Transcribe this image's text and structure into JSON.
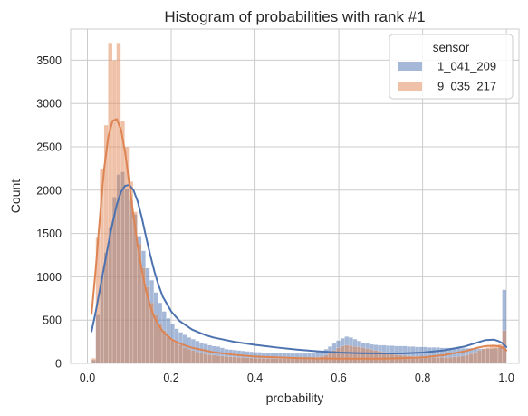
{
  "chart_data": {
    "type": "histogram",
    "title": "Histogram of probabilities with rank #1",
    "xlabel": "probability",
    "ylabel": "Count",
    "xlim": [
      -0.04,
      1.03
    ],
    "ylim": [
      0,
      3860
    ],
    "x_ticks": [
      0.0,
      0.2,
      0.4,
      0.6,
      0.8,
      1.0
    ],
    "x_tick_labels": [
      "0.0",
      "0.2",
      "0.4",
      "0.6",
      "0.8",
      "1.0"
    ],
    "y_ticks": [
      0,
      500,
      1000,
      1500,
      2000,
      2500,
      3000,
      3500
    ],
    "y_tick_labels": [
      "0",
      "500",
      "1000",
      "1500",
      "2000",
      "2500",
      "3000",
      "3500"
    ],
    "grid": true,
    "bin_edges_range": [
      0.01,
      1.0
    ],
    "legend": {
      "title": "sensor",
      "placement": "top-right"
    },
    "series": [
      {
        "name": "1_041_209",
        "color": "#4c72b0",
        "kde_x": [
          0.01,
          0.02,
          0.03,
          0.04,
          0.05,
          0.06,
          0.07,
          0.08,
          0.09,
          0.1,
          0.11,
          0.12,
          0.13,
          0.14,
          0.15,
          0.16,
          0.17,
          0.18,
          0.2,
          0.22,
          0.25,
          0.28,
          0.3,
          0.35,
          0.4,
          0.45,
          0.5,
          0.55,
          0.6,
          0.65,
          0.7,
          0.75,
          0.8,
          0.85,
          0.9,
          0.93,
          0.95,
          0.97,
          0.98,
          0.99,
          1.0
        ],
        "kde_y": [
          370,
          600,
          860,
          1120,
          1380,
          1620,
          1830,
          1980,
          2050,
          2060,
          2000,
          1870,
          1680,
          1460,
          1250,
          1060,
          900,
          770,
          600,
          490,
          390,
          330,
          300,
          250,
          215,
          185,
          160,
          140,
          125,
          118,
          115,
          115,
          125,
          150,
          195,
          240,
          270,
          275,
          260,
          235,
          190
        ],
        "values": [
          40,
          560,
          1010,
          1280,
          1560,
          1920,
          2180,
          2210,
          2010,
          1880,
          1720,
          1470,
          1300,
          1100,
          960,
          820,
          700,
          600,
          520,
          460,
          400,
          360,
          330,
          300,
          280,
          260,
          240,
          225,
          210,
          200,
          195,
          180,
          165,
          160,
          155,
          150,
          145,
          140,
          135,
          130,
          130,
          125,
          125,
          120,
          120,
          120,
          120,
          115,
          115,
          115,
          115,
          115,
          120,
          125,
          135,
          145,
          165,
          195,
          230,
          265,
          290,
          310,
          300,
          280,
          260,
          240,
          230,
          220,
          215,
          210,
          210,
          205,
          205,
          200,
          200,
          200,
          195,
          195,
          190,
          190,
          190,
          185,
          185,
          185,
          180,
          180,
          180,
          175,
          175,
          175,
          175,
          175,
          170,
          170,
          170,
          170,
          170,
          175,
          180,
          850
        ]
      },
      {
        "name": "9_035_217",
        "color": "#dd8452",
        "kde_x": [
          0.01,
          0.02,
          0.03,
          0.04,
          0.05,
          0.06,
          0.07,
          0.08,
          0.09,
          0.1,
          0.11,
          0.12,
          0.13,
          0.14,
          0.15,
          0.16,
          0.17,
          0.18,
          0.2,
          0.22,
          0.25,
          0.28,
          0.3,
          0.35,
          0.4,
          0.45,
          0.5,
          0.55,
          0.6,
          0.65,
          0.7,
          0.75,
          0.8,
          0.85,
          0.9,
          0.93,
          0.95,
          0.97,
          0.98,
          0.99,
          1.0
        ],
        "kde_y": [
          570,
          1100,
          1700,
          2250,
          2620,
          2800,
          2820,
          2700,
          2440,
          2070,
          1700,
          1360,
          1070,
          840,
          660,
          530,
          440,
          370,
          280,
          230,
          180,
          150,
          130,
          100,
          80,
          70,
          62,
          58,
          55,
          55,
          55,
          60,
          70,
          95,
          140,
          180,
          200,
          205,
          200,
          185,
          150
        ],
        "values": [
          60,
          1450,
          2250,
          2750,
          3700,
          3500,
          3700,
          2800,
          2500,
          2100,
          1750,
          1380,
          1100,
          880,
          700,
          560,
          460,
          380,
          320,
          280,
          240,
          210,
          185,
          165,
          150,
          135,
          120,
          110,
          100,
          95,
          90,
          85,
          80,
          75,
          75,
          70,
          70,
          65,
          65,
          60,
          60,
          60,
          58,
          58,
          56,
          56,
          55,
          55,
          55,
          55,
          55,
          55,
          58,
          62,
          70,
          80,
          95,
          120,
          150,
          180,
          200,
          210,
          205,
          195,
          190,
          180,
          170,
          160,
          150,
          140,
          130,
          120,
          110,
          100,
          95,
          90,
          85,
          80,
          80,
          75,
          75,
          70,
          70,
          70,
          70,
          70,
          70,
          75,
          80,
          85,
          95,
          110,
          130,
          150,
          170,
          185,
          200,
          210,
          220,
          380
        ]
      }
    ]
  }
}
